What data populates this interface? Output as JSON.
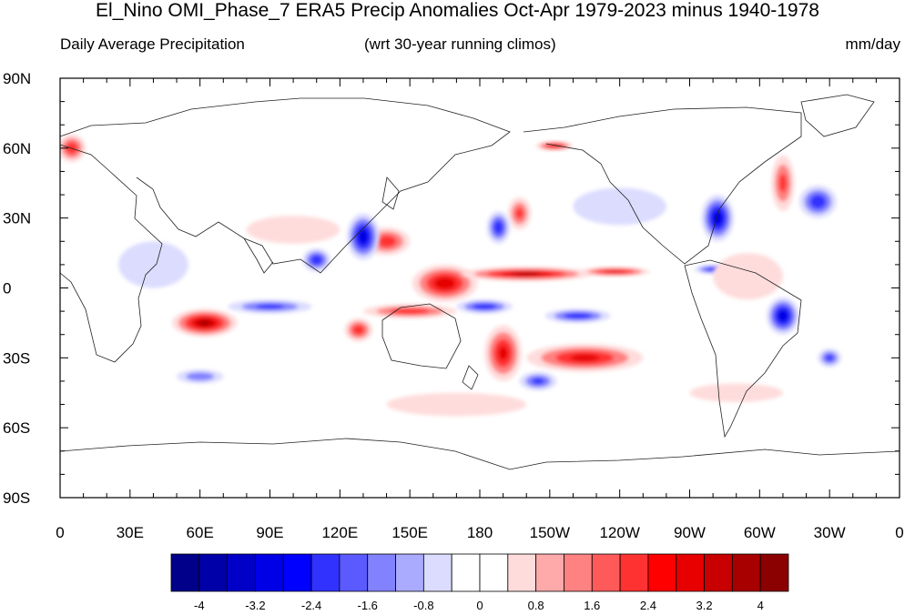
{
  "title": "El_Nino OMI_Phase_7 ERA5 Precip Anomalies Oct-Apr 1979-2023 minus 1940-1978",
  "subtitle_left": "Daily Average Precipitation",
  "subtitle_center": "(wrt 30-year running climos)",
  "subtitle_right": "mm/day",
  "lat_labels": [
    "90N",
    "60N",
    "30N",
    "0",
    "30S",
    "60S",
    "90S"
  ],
  "lon_labels": [
    "0",
    "30E",
    "60E",
    "90E",
    "120E",
    "150E",
    "180",
    "150W",
    "120W",
    "90W",
    "60W",
    "30W",
    "0"
  ],
  "colorbar": {
    "colors": [
      "#00008b",
      "#0000a8",
      "#0000c8",
      "#0000e6",
      "#0000ff",
      "#3232ff",
      "#5a5aff",
      "#8282ff",
      "#aaaaff",
      "#dcdcff",
      "#ffffff",
      "#ffffff",
      "#ffdcdc",
      "#ffaaaa",
      "#ff8282",
      "#ff5a5a",
      "#ff3232",
      "#ff0000",
      "#e60000",
      "#c80000",
      "#a80000",
      "#8b0000"
    ],
    "labels": [
      "-4",
      "-3.2",
      "-2.4",
      "-1.6",
      "-0.8",
      "0",
      "0.8",
      "1.6",
      "2.4",
      "3.2",
      "4"
    ]
  },
  "anomaly_blobs": [
    {
      "lon": 165,
      "lat": 2,
      "rlon": 14,
      "rlat": 8,
      "level": 8
    },
    {
      "lon": 200,
      "lat": 6,
      "rlon": 28,
      "rlat": 3,
      "level": 9
    },
    {
      "lon": 238,
      "lat": 7,
      "rlon": 15,
      "rlat": 2,
      "level": 8
    },
    {
      "lon": 62,
      "lat": -15,
      "rlon": 14,
      "rlat": 6,
      "level": 9
    },
    {
      "lon": 225,
      "lat": -30,
      "rlon": 25,
      "rlat": 6,
      "level": 7
    },
    {
      "lon": 190,
      "lat": -28,
      "rlon": 8,
      "rlat": 12,
      "level": 7
    },
    {
      "lon": 140,
      "lat": 20,
      "rlon": 10,
      "rlat": 6,
      "level": 6
    },
    {
      "lon": 150,
      "lat": -10,
      "rlon": 20,
      "rlat": 3,
      "level": 6
    },
    {
      "lon": 128,
      "lat": -18,
      "rlon": 6,
      "rlat": 5,
      "level": 6
    },
    {
      "lon": 212,
      "lat": 61,
      "rlon": 8,
      "rlat": 2,
      "level": 8
    },
    {
      "lon": 5,
      "lat": 60,
      "rlon": 6,
      "rlat": 6,
      "level": 6
    },
    {
      "lon": 197,
      "lat": 32,
      "rlon": 5,
      "rlat": 7,
      "level": 5
    },
    {
      "lon": 310,
      "lat": 45,
      "rlon": 5,
      "rlat": 12,
      "level": 5
    },
    {
      "lon": 130,
      "lat": 22,
      "rlon": 7,
      "rlat": 10,
      "level": -8
    },
    {
      "lon": 182,
      "lat": -8,
      "rlon": 12,
      "rlat": 3,
      "level": -6
    },
    {
      "lon": 282,
      "lat": 30,
      "rlon": 7,
      "rlat": 10,
      "level": -8
    },
    {
      "lon": 310,
      "lat": -12,
      "rlon": 7,
      "rlat": 8,
      "level": -8
    },
    {
      "lon": 325,
      "lat": 37,
      "rlon": 8,
      "rlat": 7,
      "level": -6
    },
    {
      "lon": 90,
      "lat": -8,
      "rlon": 18,
      "rlat": 3,
      "level": -5
    },
    {
      "lon": 222,
      "lat": -12,
      "rlon": 14,
      "rlat": 3,
      "level": -6
    },
    {
      "lon": 205,
      "lat": -40,
      "rlon": 8,
      "rlat": 4,
      "level": -5
    },
    {
      "lon": 188,
      "lat": 26,
      "rlon": 5,
      "rlat": 7,
      "level": -6
    },
    {
      "lon": 110,
      "lat": 12,
      "rlon": 6,
      "rlat": 5,
      "level": -6
    },
    {
      "lon": 280,
      "lat": 8,
      "rlon": 8,
      "rlat": 2,
      "level": -6
    },
    {
      "lon": 60,
      "lat": -38,
      "rlon": 10,
      "rlat": 3,
      "level": -4
    },
    {
      "lon": 330,
      "lat": -30,
      "rlon": 5,
      "rlat": 4,
      "level": -5
    },
    {
      "lon": 295,
      "lat": 5,
      "rlon": 15,
      "rlat": 10,
      "level": 2
    },
    {
      "lon": 100,
      "lat": 25,
      "rlon": 20,
      "rlat": 6,
      "level": 2
    },
    {
      "lon": 240,
      "lat": 35,
      "rlon": 20,
      "rlat": 8,
      "level": -2
    },
    {
      "lon": 40,
      "lat": 10,
      "rlon": 15,
      "rlat": 10,
      "level": -2
    },
    {
      "lon": 170,
      "lat": -50,
      "rlon": 30,
      "rlat": 5,
      "level": 2
    },
    {
      "lon": 290,
      "lat": -45,
      "rlon": 20,
      "rlat": 4,
      "level": 2
    }
  ]
}
